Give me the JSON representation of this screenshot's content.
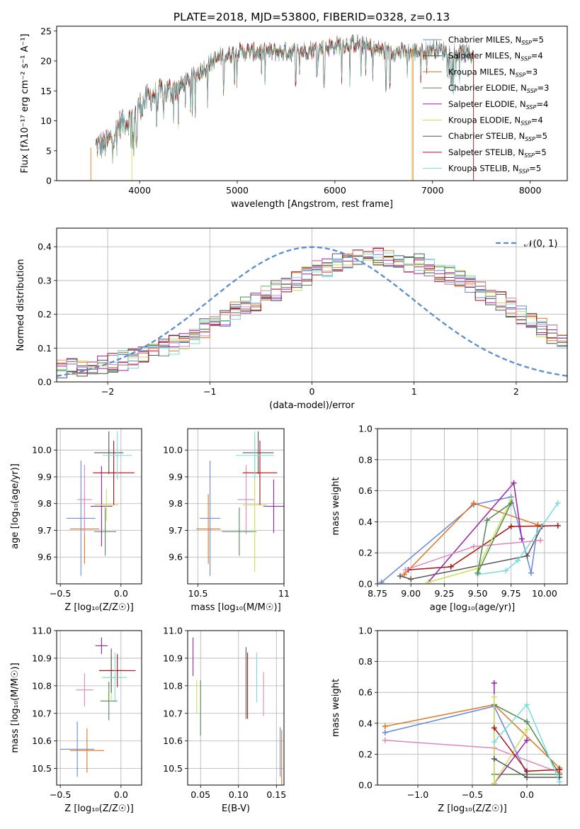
{
  "figure_title": "PLATE=2018, MJD=53800, FIBERID=0328, z=0.13",
  "colors": {
    "chabrier_miles": "#6688dd",
    "salpeter_miles": "#4c4c4c",
    "kroupa_miles": "#dd7722",
    "chabrier_elodie": "#558855",
    "salpeter_elodie": "#9922aa",
    "kroupa_elodie": "#ccdd55",
    "chabrier_stelib": "#555555",
    "salpeter_stelib": "#aa1111",
    "kroupa_stelib": "#77dddd",
    "pink": "#dd88bb",
    "gaussian": "#5b8bd6"
  },
  "chart_data": [
    {
      "id": "spectrum",
      "type": "line",
      "xlabel": "wavelength [Angstrom, rest frame]",
      "ylabel": "Flux [fλ10⁻¹⁷ erg cm⁻² s⁻¹ A⁻¹]",
      "xlim": [
        3150,
        8380
      ],
      "ylim": [
        0,
        25.8
      ],
      "xticks": [
        4000,
        5000,
        6000,
        7000,
        8000
      ],
      "yticks": [
        0,
        5,
        10,
        15,
        20,
        25
      ],
      "legend_position": "top-right",
      "legend": [
        "Chabrier MILES, N_SSP=5",
        "Salpeter MILES, N_SSP=4",
        "Kroupa MILES, N_SSP=3",
        "Chabrier ELODIE, N_SSP=3",
        "Salpeter ELODIE, N_SSP=4",
        "Kroupa ELODIE, N_SSP=4",
        "Chabrier STELIB, N_SSP=5",
        "Salpeter STELIB, N_SSP=5",
        "Kroupa STELIB, N_SSP=5"
      ],
      "series_colors": [
        "#6688dd",
        "#4c4c4c",
        "#dd7722",
        "#558855",
        "#9922aa",
        "#ccdd55",
        "#555555",
        "#aa1111",
        "#77dddd"
      ],
      "continuum": {
        "x": [
          3550,
          3650,
          3700,
          3800,
          3900,
          4000,
          4100,
          4200,
          4400,
          4600,
          4800,
          5000,
          5200,
          5400,
          5600,
          5800,
          6000,
          6200,
          6400,
          6600,
          6800,
          7000,
          7200,
          7400
        ],
        "y": [
          5.8,
          6.0,
          7.0,
          9.5,
          10.2,
          12.5,
          14.0,
          14.5,
          15.5,
          18.0,
          20.5,
          21.5,
          21.5,
          21.5,
          21.5,
          22.0,
          22.5,
          23.0,
          22.0,
          21.5,
          21.5,
          22.0,
          21.5,
          21.0
        ]
      }
    },
    {
      "id": "residuals",
      "type": "step",
      "xlabel": "(data-model)/error",
      "ylabel": "Normed distribution",
      "xlim": [
        -2.5,
        2.5
      ],
      "ylim": [
        0,
        0.455
      ],
      "xticks": [
        -2,
        -1,
        0,
        1,
        2
      ],
      "yticks": [
        0.0,
        0.1,
        0.2,
        0.3,
        0.4
      ],
      "grid": true,
      "legend_position": "top-right",
      "gaussian_label": "𝒩(0, 1)",
      "bin_width": 0.1,
      "bin_centers_start": -2.45,
      "envelope": [
        0.038,
        0.04,
        0.043,
        0.046,
        0.05,
        0.055,
        0.062,
        0.07,
        0.08,
        0.09,
        0.1,
        0.11,
        0.125,
        0.14,
        0.16,
        0.175,
        0.19,
        0.21,
        0.225,
        0.24,
        0.255,
        0.27,
        0.285,
        0.3,
        0.315,
        0.33,
        0.34,
        0.35,
        0.36,
        0.365,
        0.368,
        0.37,
        0.365,
        0.36,
        0.35,
        0.35,
        0.335,
        0.325,
        0.315,
        0.3,
        0.285,
        0.27,
        0.255,
        0.24,
        0.22,
        0.2,
        0.18,
        0.16,
        0.14,
        0.12
      ]
    },
    {
      "id": "age-vs-z",
      "type": "errorbar",
      "xlabel": "Z [log₁₀(Z/Z☉)]",
      "ylabel": "age  [log₁₀(age/yr)]",
      "xlim": [
        -0.53,
        0.17
      ],
      "ylim": [
        9.5,
        10.08
      ],
      "xticks": [
        -0.5,
        0.0
      ],
      "xticklabels": [
        "−0.5",
        "0.0"
      ],
      "yticks": [
        9.6,
        9.7,
        9.8,
        9.9,
        10.0
      ],
      "grid": true,
      "points": [
        {
          "c": "#6688dd",
          "x": -0.33,
          "xe": 0.12,
          "y": 9.745,
          "ye": 0.215
        },
        {
          "c": "#dd7722",
          "x": -0.3,
          "xe": 0.12,
          "y": 9.705,
          "ye": 0.13
        },
        {
          "c": "#dd88bb",
          "x": -0.3,
          "xe": 0.06,
          "y": 9.815,
          "ye": 0.13
        },
        {
          "c": "#558855",
          "x": -0.13,
          "xe": 0.09,
          "y": 9.695,
          "ye": 0.09
        },
        {
          "c": "#9922aa",
          "x": -0.16,
          "xe": 0.09,
          "y": 9.79,
          "ye": 0.15
        },
        {
          "c": "#ccdd55",
          "x": -0.12,
          "xe": 0.1,
          "y": 9.795,
          "ye": 0.06
        },
        {
          "c": "#555555",
          "x": -0.1,
          "xe": 0.12,
          "y": 9.99,
          "ye": 0.08
        },
        {
          "c": "#aa1111",
          "x": -0.06,
          "xe": 0.17,
          "y": 9.915,
          "ye": 0.12
        },
        {
          "c": "#77dddd",
          "x": -0.03,
          "xe": 0.12,
          "y": 9.98,
          "ye": 0.09
        }
      ]
    },
    {
      "id": "age-vs-mass",
      "type": "errorbar",
      "xlabel": "mass [log₁₀(M/M☉)]",
      "xlim": [
        10.44,
        11.0
      ],
      "ylim": [
        9.5,
        10.08
      ],
      "xticks": [
        10.5,
        11.0
      ],
      "yticks": [
        9.6,
        9.7,
        9.8,
        9.9,
        10.0
      ],
      "grid": true,
      "points": [
        {
          "c": "#6688dd",
          "x": 10.57,
          "xe": 0.06,
          "y": 9.745,
          "ye": 0.215
        },
        {
          "c": "#dd7722",
          "x": 10.56,
          "xe": 0.07,
          "y": 9.705,
          "ye": 0.13
        },
        {
          "c": "#dd88bb",
          "x": 10.78,
          "xe": 0.05,
          "y": 9.815,
          "ye": 0.13
        },
        {
          "c": "#558855",
          "x": 10.74,
          "xe": 0.1,
          "y": 9.695,
          "ye": 0.09
        },
        {
          "c": "#9922aa",
          "x": 10.94,
          "xe": 0.06,
          "y": 9.79,
          "ye": 0.1
        },
        {
          "c": "#ccdd55",
          "x": 10.83,
          "xe": 0.07,
          "y": 9.795,
          "ye": 0.25
        },
        {
          "c": "#555555",
          "x": 10.85,
          "xe": 0.09,
          "y": 9.99,
          "ye": 0.08
        },
        {
          "c": "#aa1111",
          "x": 10.86,
          "xe": 0.1,
          "y": 9.915,
          "ye": 0.12
        },
        {
          "c": "#77dddd",
          "x": 10.83,
          "xe": 0.11,
          "y": 9.98,
          "ye": 0.09
        }
      ]
    },
    {
      "id": "massweight-vs-age",
      "type": "line",
      "xlabel": "age  [log₁₀(age/yr)]",
      "ylabel": "mass weight",
      "xlim": [
        8.75,
        10.17
      ],
      "ylim": [
        0,
        1.0
      ],
      "xticks": [
        8.75,
        9.0,
        9.25,
        9.5,
        9.75,
        10.0
      ],
      "xticklabels": [
        "8.75",
        "9.00",
        "9.25",
        "9.50",
        "9.75",
        "10.00"
      ],
      "yticks": [
        0.0,
        0.2,
        0.4,
        0.6,
        0.8,
        1.0
      ],
      "grid": true,
      "series": [
        {
          "c": "#6688dd",
          "x": [
            8.78,
            9.47,
            9.75,
            9.9,
            9.95
          ],
          "y": [
            0.01,
            0.51,
            0.56,
            0.07,
            0.38
          ]
        },
        {
          "c": "#dd7722",
          "x": [
            8.95,
            9.47,
            9.95
          ],
          "y": [
            0.06,
            0.52,
            0.38
          ]
        },
        {
          "c": "#555555",
          "x": [
            8.92,
            9.0,
            9.87,
            9.98
          ],
          "y": [
            0.05,
            0.03,
            0.18,
            0.37
          ]
        },
        {
          "c": "#aa1111",
          "x": [
            8.98,
            9.3,
            9.75,
            10.1
          ],
          "y": [
            0.09,
            0.11,
            0.37,
            0.375
          ]
        },
        {
          "c": "#77dddd",
          "x": [
            9.5,
            9.71,
            9.8,
            10.1
          ],
          "y": [
            0.06,
            0.085,
            0.15,
            0.52
          ]
        },
        {
          "c": "#9922aa",
          "x": [
            9.13,
            9.77,
            9.83
          ],
          "y": [
            0.01,
            0.65,
            0.29
          ]
        },
        {
          "c": "#ccdd55",
          "x": [
            9.13,
            9.5,
            9.75
          ],
          "y": [
            0.01,
            0.1,
            0.54
          ]
        },
        {
          "c": "#dd88bb",
          "x": [
            8.96,
            9.47,
            9.97
          ],
          "y": [
            0.09,
            0.24,
            0.28
          ]
        },
        {
          "c": "#558855",
          "x": [
            9.5,
            9.57,
            9.75,
            9.5
          ],
          "y": [
            0.07,
            0.41,
            0.52,
            0.07
          ]
        }
      ]
    },
    {
      "id": "mass-vs-z",
      "type": "errorbar",
      "xlabel": "Z [log₁₀(Z/Z☉)]",
      "ylabel": "mass [log₁₀(M/M☉)]",
      "xlim": [
        -0.53,
        0.17
      ],
      "ylim": [
        10.44,
        11.0
      ],
      "xticks": [
        -0.5,
        0.0
      ],
      "xticklabels": [
        "−0.5",
        "0.0"
      ],
      "yticks": [
        10.5,
        10.6,
        10.7,
        10.8,
        10.9,
        11.0
      ],
      "grid": true,
      "points": [
        {
          "c": "#6688dd",
          "x": -0.36,
          "xe": 0.14,
          "y": 10.57,
          "ye": 0.1
        },
        {
          "c": "#dd7722",
          "x": -0.28,
          "xe": 0.14,
          "y": 10.565,
          "ye": 0.08
        },
        {
          "c": "#dd88bb",
          "x": -0.3,
          "xe": 0.07,
          "y": 10.785,
          "ye": 0.06
        },
        {
          "c": "#558855",
          "x": -0.1,
          "xe": 0.07,
          "y": 10.745,
          "ye": 0.07
        },
        {
          "c": "#9922aa",
          "x": -0.16,
          "xe": 0.05,
          "y": 10.945,
          "ye": 0.03
        },
        {
          "c": "#ccdd55",
          "x": -0.08,
          "xe": 0.08,
          "y": 10.83,
          "ye": 0.08
        },
        {
          "c": "#555555",
          "x": -0.08,
          "xe": 0.1,
          "y": 10.855,
          "ye": 0.08
        },
        {
          "c": "#aa1111",
          "x": -0.03,
          "xe": 0.15,
          "y": 10.855,
          "ye": 0.06
        },
        {
          "c": "#77dddd",
          "x": -0.05,
          "xe": 0.1,
          "y": 10.83,
          "ye": 0.09
        }
      ]
    },
    {
      "id": "mass-vs-ebv",
      "type": "errorbar",
      "xlabel": "E(B-V)",
      "xlim": [
        0.033,
        0.16
      ],
      "ylim": [
        10.44,
        11.0
      ],
      "xticks": [
        0.05,
        0.1,
        0.15
      ],
      "xticklabels": [
        "0.05",
        "0.10",
        "0.15"
      ],
      "yticks": [
        10.5,
        10.6,
        10.7,
        10.8,
        10.9,
        11.0
      ],
      "grid": true,
      "points": [
        {
          "c": "#9922aa",
          "x": 0.04,
          "xe": 0,
          "y": 10.905,
          "ye": 0.07
        },
        {
          "c": "#ccdd55",
          "x": 0.045,
          "xe": 0,
          "y": 10.76,
          "ye": 0.06
        },
        {
          "c": "#558855",
          "x": 0.05,
          "xe": 0,
          "y": 10.72,
          "ye": 0.1
        },
        {
          "c": "#555555",
          "x": 0.11,
          "xe": 0,
          "y": 10.81,
          "ye": 0.13
        },
        {
          "c": "#aa1111",
          "x": 0.112,
          "xe": 0,
          "y": 10.8,
          "ye": 0.12
        },
        {
          "c": "#77dddd",
          "x": 0.124,
          "xe": 0,
          "y": 10.83,
          "ye": 0.09
        },
        {
          "c": "#dd88bb",
          "x": 0.133,
          "xe": 0,
          "y": 10.77,
          "ye": 0.08
        },
        {
          "c": "#6688dd",
          "x": 0.155,
          "xe": 0,
          "y": 10.56,
          "ye": 0.09
        },
        {
          "c": "#dd7722",
          "x": 0.157,
          "xe": 0,
          "y": 10.54,
          "ye": 0.1
        }
      ]
    },
    {
      "id": "massweight-vs-z",
      "type": "line",
      "xlabel": "Z [log₁₀(Z/Z☉)]",
      "ylabel": "mass weight",
      "xlim": [
        -1.37,
        0.37
      ],
      "ylim": [
        0,
        1.0
      ],
      "xticks": [
        -1.0,
        -0.5,
        0.0
      ],
      "xticklabels": [
        "−1.0",
        "−0.5",
        "0.0"
      ],
      "yticks": [
        0.0,
        0.2,
        0.4,
        0.6,
        0.8,
        1.0
      ],
      "grid": true,
      "series": [
        {
          "c": "#6688dd",
          "x": [
            -1.3,
            -0.3,
            0.0,
            0.3
          ],
          "y": [
            0.34,
            0.51,
            0.07,
            0.07
          ]
        },
        {
          "c": "#dd7722",
          "x": [
            -1.3,
            -0.3,
            0.3
          ],
          "y": [
            0.38,
            0.52,
            0.11
          ]
        },
        {
          "c": "#dd88bb",
          "x": [
            -1.3,
            -0.3,
            0.3
          ],
          "y": [
            0.29,
            0.24,
            0.08
          ]
        },
        {
          "c": "#558855",
          "x": [
            -0.3,
            0.0,
            0.3,
            -0.3
          ],
          "y": [
            0.52,
            0.41,
            0.07,
            0.07
          ]
        },
        {
          "c": "#9922aa",
          "x": [
            -0.3,
            -0.3,
            0.0
          ],
          "y": [
            0.66,
            0.01,
            0.29
          ]
        },
        {
          "c": "#ccdd55",
          "x": [
            -0.3,
            -0.3,
            0.0
          ],
          "y": [
            0.57,
            0.01,
            0.36
          ]
        },
        {
          "c": "#555555",
          "x": [
            -0.3,
            0.0,
            0.3
          ],
          "y": [
            0.17,
            0.05,
            0.05
          ]
        },
        {
          "c": "#aa1111",
          "x": [
            -0.3,
            0.0,
            0.3
          ],
          "y": [
            0.37,
            0.09,
            0.1
          ]
        },
        {
          "c": "#77dddd",
          "x": [
            -0.3,
            0.0,
            0.3
          ],
          "y": [
            0.28,
            0.52,
            0.02
          ]
        }
      ]
    }
  ]
}
